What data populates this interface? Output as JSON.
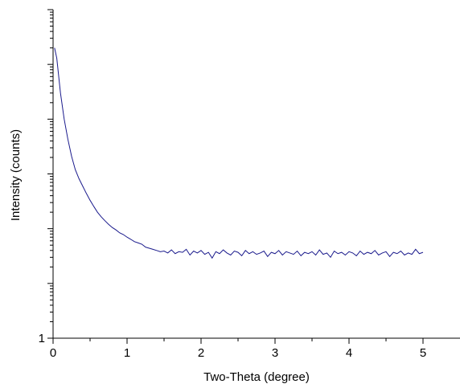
{
  "chart_data": {
    "type": "line",
    "title": "",
    "xlabel": "Two-Theta (degree)",
    "ylabel": "Intensity (counts)",
    "xlim": [
      0,
      5.5
    ],
    "ylim": [
      1,
      1000000
    ],
    "yscale": "log",
    "x_ticks": [
      0,
      1,
      2,
      3,
      4,
      5
    ],
    "x_tick_labels": [
      "0",
      "1",
      "2",
      "3",
      "4",
      "5"
    ],
    "y_tick_labels": [
      "1"
    ],
    "grid": false,
    "legend": "none",
    "line_color": "#1a1a8c",
    "series": [
      {
        "x": [
          0.02,
          0.05,
          0.1,
          0.15,
          0.2,
          0.25,
          0.3,
          0.35,
          0.4,
          0.45,
          0.5,
          0.55,
          0.6,
          0.65,
          0.7,
          0.75,
          0.8,
          0.85,
          0.9,
          0.95,
          1.0,
          1.05,
          1.1,
          1.15,
          1.2,
          1.25,
          1.3,
          1.35,
          1.4,
          1.45,
          1.5,
          1.55,
          1.6,
          1.65,
          1.7,
          1.75,
          1.8,
          1.85,
          1.9,
          1.95,
          2.0,
          2.05,
          2.1,
          2.15,
          2.2,
          2.25,
          2.3,
          2.35,
          2.4,
          2.45,
          2.5,
          2.55,
          2.6,
          2.65,
          2.7,
          2.75,
          2.8,
          2.85,
          2.9,
          2.95,
          3.0,
          3.05,
          3.1,
          3.15,
          3.2,
          3.25,
          3.3,
          3.35,
          3.4,
          3.45,
          3.5,
          3.55,
          3.6,
          3.65,
          3.7,
          3.75,
          3.8,
          3.85,
          3.9,
          3.95,
          4.0,
          4.05,
          4.1,
          4.15,
          4.2,
          4.25,
          4.3,
          4.35,
          4.4,
          4.45,
          4.5,
          4.55,
          4.6,
          4.65,
          4.7,
          4.75,
          4.8,
          4.85,
          4.9,
          4.95,
          5.0
        ],
        "y": [
          200000,
          130000,
          30000,
          10000,
          4300,
          2100,
          1200,
          820,
          600,
          440,
          330,
          255,
          200,
          165,
          140,
          120,
          105,
          95,
          84,
          78,
          70,
          64,
          58,
          55,
          52,
          46,
          44,
          42,
          40,
          38,
          39,
          36,
          41,
          35,
          38,
          37,
          42,
          33,
          39,
          36,
          40,
          34,
          37,
          29,
          38,
          35,
          41,
          36,
          33,
          39,
          37,
          32,
          40,
          35,
          38,
          34,
          36,
          39,
          31,
          37,
          35,
          40,
          33,
          38,
          36,
          34,
          39,
          32,
          37,
          35,
          38,
          33,
          41,
          34,
          36,
          30,
          39,
          35,
          37,
          33,
          38,
          36,
          32,
          39,
          34,
          37,
          35,
          40,
          33,
          36,
          38,
          31,
          37,
          35,
          39,
          33,
          36,
          34,
          42,
          35,
          37
        ]
      }
    ]
  }
}
